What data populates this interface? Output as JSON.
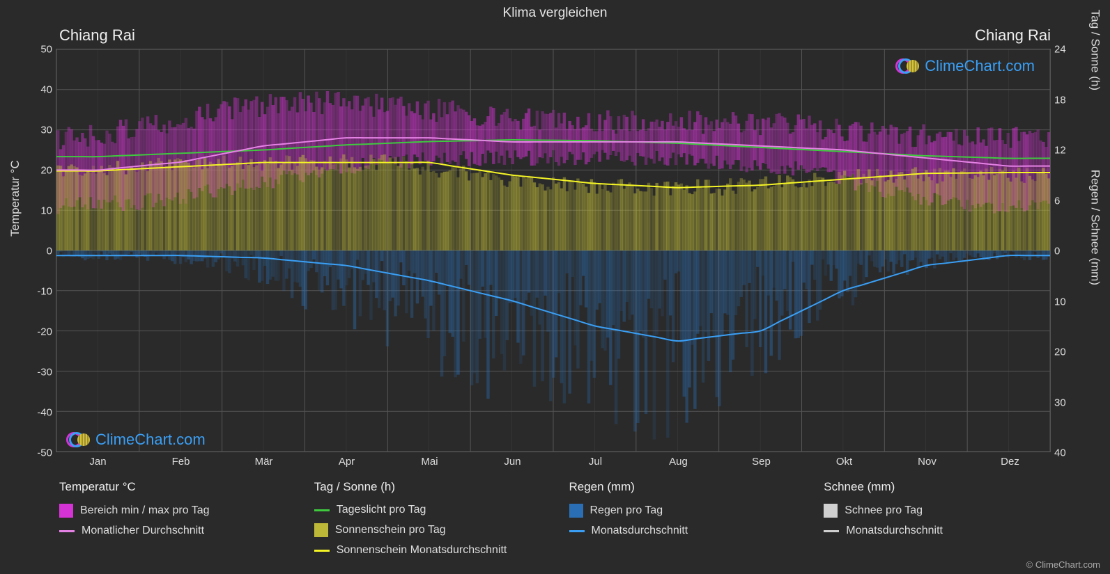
{
  "title": "Klima vergleichen",
  "location_left": "Chiang Rai",
  "location_right": "Chiang Rai",
  "background_color": "#2a2a2a",
  "grid_color": "#555555",
  "text_color": "#e0e0e0",
  "watermark_text": "ClimeChart.com",
  "watermark_color": "#3a9ff5",
  "copyright": "© ClimeChart.com",
  "x_axis": {
    "labels": [
      "Jan",
      "Feb",
      "Mär",
      "Apr",
      "Mai",
      "Jun",
      "Jul",
      "Aug",
      "Sep",
      "Okt",
      "Nov",
      "Dez"
    ]
  },
  "y_left": {
    "label": "Temperatur °C",
    "min": -50,
    "max": 50,
    "ticks": [
      50,
      40,
      30,
      20,
      10,
      0,
      -10,
      -20,
      -30,
      -40,
      -50
    ]
  },
  "y_right_top": {
    "label": "Tag / Sonne (h)",
    "min": 0,
    "max": 24,
    "ticks": [
      24,
      18,
      12,
      6,
      0
    ]
  },
  "y_right_bottom": {
    "label": "Regen / Schnee (mm)",
    "min": 0,
    "max": 40,
    "ticks": [
      0,
      10,
      20,
      30,
      40
    ]
  },
  "series": {
    "temp_range": {
      "color": "#d633d6",
      "fill_opacity": 0.55,
      "max": [
        28,
        30,
        35,
        37,
        36,
        34,
        32,
        32,
        32,
        31,
        29,
        28
      ],
      "min": [
        11,
        12,
        15,
        19,
        22,
        23,
        23,
        23,
        22,
        20,
        15,
        11
      ]
    },
    "temp_monthly_avg": {
      "color": "#e682e6",
      "line_width": 2,
      "values": [
        20,
        22,
        26,
        28,
        28,
        27,
        27,
        27,
        26,
        25,
        23,
        21
      ]
    },
    "daylight": {
      "color": "#3fc93f",
      "line_width": 2,
      "values_h": [
        11.2,
        11.6,
        12.0,
        12.6,
        13.0,
        13.2,
        13.1,
        12.8,
        12.3,
        11.8,
        11.3,
        11.0
      ]
    },
    "sunshine_fill": {
      "color": "#bdb838",
      "fill_opacity": 0.55,
      "values_h": [
        9.5,
        10,
        10.5,
        10.5,
        10.5,
        9,
        8,
        7.5,
        7.5,
        8.5,
        9,
        9
      ]
    },
    "sunshine_monthly_avg": {
      "color": "#f5f526",
      "line_width": 2,
      "values_h": [
        9.5,
        10,
        10.5,
        10.5,
        10.5,
        9,
        8,
        7.5,
        7.8,
        8.5,
        9.2,
        9.3
      ]
    },
    "rain_fill": {
      "color": "#2a6fb5",
      "fill_opacity": 0.45,
      "values_mm": [
        1,
        1,
        2,
        6,
        10,
        14,
        18,
        20,
        17,
        10,
        3,
        1
      ]
    },
    "rain_monthly_avg": {
      "color": "#3a9ff5",
      "line_width": 2,
      "values_mm": [
        1,
        1,
        1.5,
        3,
        6,
        10,
        15,
        18,
        16,
        8,
        3,
        1
      ]
    }
  },
  "legend": {
    "cols": [
      {
        "header": "Temperatur °C",
        "items": [
          {
            "type": "swatch",
            "color": "#d633d6",
            "label": "Bereich min / max pro Tag"
          },
          {
            "type": "line",
            "color": "#e682e6",
            "label": "Monatlicher Durchschnitt"
          }
        ]
      },
      {
        "header": "Tag / Sonne (h)",
        "items": [
          {
            "type": "line",
            "color": "#3fc93f",
            "label": "Tageslicht pro Tag"
          },
          {
            "type": "swatch",
            "color": "#bdb838",
            "label": "Sonnenschein pro Tag"
          },
          {
            "type": "line",
            "color": "#f5f526",
            "label": "Sonnenschein Monatsdurchschnitt"
          }
        ]
      },
      {
        "header": "Regen (mm)",
        "items": [
          {
            "type": "swatch",
            "color": "#2a6fb5",
            "label": "Regen pro Tag"
          },
          {
            "type": "line",
            "color": "#3a9ff5",
            "label": "Monatsdurchschnitt"
          }
        ]
      },
      {
        "header": "Schnee (mm)",
        "items": [
          {
            "type": "swatch",
            "color": "#d0d0d0",
            "label": "Schnee pro Tag"
          },
          {
            "type": "line",
            "color": "#d0d0d0",
            "label": "Monatsdurchschnitt"
          }
        ]
      }
    ]
  }
}
